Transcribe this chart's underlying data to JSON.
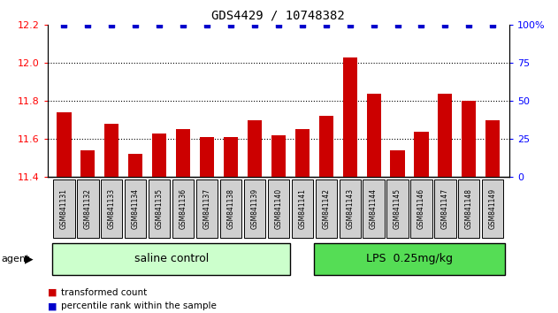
{
  "title": "GDS4429 / 10748382",
  "categories": [
    "GSM841131",
    "GSM841132",
    "GSM841133",
    "GSM841134",
    "GSM841135",
    "GSM841136",
    "GSM841137",
    "GSM841138",
    "GSM841139",
    "GSM841140",
    "GSM841141",
    "GSM841142",
    "GSM841143",
    "GSM841144",
    "GSM841145",
    "GSM841146",
    "GSM841147",
    "GSM841148",
    "GSM841149"
  ],
  "bar_values": [
    11.74,
    11.54,
    11.68,
    11.52,
    11.63,
    11.65,
    11.61,
    11.61,
    11.7,
    11.62,
    11.65,
    11.72,
    12.03,
    11.84,
    11.54,
    11.64,
    11.84,
    11.8,
    11.7
  ],
  "percentile_values": [
    100,
    100,
    100,
    100,
    100,
    100,
    100,
    100,
    100,
    100,
    100,
    100,
    100,
    100,
    100,
    100,
    100,
    100,
    100
  ],
  "bar_color": "#cc0000",
  "percentile_color": "#0000cc",
  "ylim_left": [
    11.4,
    12.2
  ],
  "ylim_right": [
    0,
    100
  ],
  "yticks_left": [
    11.4,
    11.6,
    11.8,
    12.0,
    12.2
  ],
  "yticks_right": [
    0,
    25,
    50,
    75,
    100
  ],
  "ytick_labels_right": [
    "0",
    "25",
    "50",
    "75",
    "100%"
  ],
  "gridlines": [
    11.6,
    11.8,
    12.0
  ],
  "saline_count": 10,
  "saline_label": "saline control",
  "lps_label": "LPS  0.25mg/kg",
  "agent_label": "agent",
  "legend_bar_label": "transformed count",
  "legend_dot_label": "percentile rank within the sample",
  "saline_color": "#ccffcc",
  "lps_color": "#55dd55",
  "bar_width": 0.6,
  "tick_box_color": "#d0d0d0"
}
